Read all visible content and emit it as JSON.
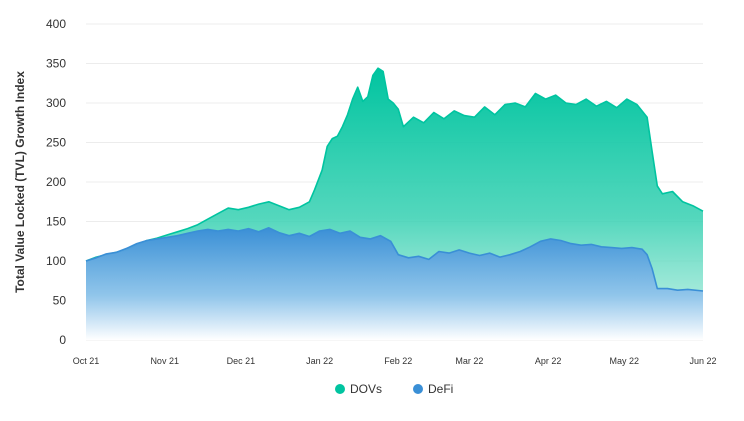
{
  "chart_data": {
    "type": "area",
    "title": "",
    "xlabel": "",
    "ylabel": "Total Value Locked (TVL) Growth Index",
    "ylim": [
      0,
      400
    ],
    "yticks": [
      0,
      50,
      100,
      150,
      200,
      250,
      300,
      350,
      400
    ],
    "xticks": [
      {
        "label": "Oct 21",
        "date": "2021-10-01"
      },
      {
        "label": "Nov 21",
        "date": "2021-11-01"
      },
      {
        "label": "Dec 21",
        "date": "2021-12-01"
      },
      {
        "label": "Jan 22",
        "date": "2022-01-01"
      },
      {
        "label": "Feb 22",
        "date": "2022-02-01"
      },
      {
        "label": "Mar 22",
        "date": "2022-03-01"
      },
      {
        "label": "Apr 22",
        "date": "2022-04-01"
      },
      {
        "label": "May 22",
        "date": "2022-05-01"
      },
      {
        "label": "Jun 22",
        "date": "2022-06-01"
      }
    ],
    "xlim": [
      "2021-10-01",
      "2022-06-01"
    ],
    "grid": "horizontal",
    "legend": "bottom",
    "series": [
      {
        "name": "DOVs",
        "color": "#00C4A0",
        "points": [
          [
            "2021-10-01",
            100
          ],
          [
            "2021-10-05",
            105
          ],
          [
            "2021-10-09",
            108
          ],
          [
            "2021-10-13",
            111
          ],
          [
            "2021-10-17",
            114
          ],
          [
            "2021-10-21",
            120
          ],
          [
            "2021-10-25",
            126
          ],
          [
            "2021-10-29",
            129
          ],
          [
            "2021-11-02",
            133
          ],
          [
            "2021-11-06",
            137
          ],
          [
            "2021-11-10",
            141
          ],
          [
            "2021-11-14",
            146
          ],
          [
            "2021-11-18",
            153
          ],
          [
            "2021-11-22",
            160
          ],
          [
            "2021-11-26",
            167
          ],
          [
            "2021-11-30",
            165
          ],
          [
            "2021-12-04",
            168
          ],
          [
            "2021-12-08",
            172
          ],
          [
            "2021-12-12",
            175
          ],
          [
            "2021-12-16",
            170
          ],
          [
            "2021-12-20",
            165
          ],
          [
            "2021-12-24",
            168
          ],
          [
            "2021-12-28",
            175
          ],
          [
            "2021-12-30",
            190
          ],
          [
            "2022-01-02",
            215
          ],
          [
            "2022-01-04",
            245
          ],
          [
            "2022-01-06",
            255
          ],
          [
            "2022-01-08",
            258
          ],
          [
            "2022-01-10",
            270
          ],
          [
            "2022-01-12",
            285
          ],
          [
            "2022-01-14",
            305
          ],
          [
            "2022-01-16",
            320
          ],
          [
            "2022-01-18",
            302
          ],
          [
            "2022-01-20",
            308
          ],
          [
            "2022-01-22",
            335
          ],
          [
            "2022-01-24",
            344
          ],
          [
            "2022-01-26",
            340
          ],
          [
            "2022-01-28",
            305
          ],
          [
            "2022-01-30",
            300
          ],
          [
            "2022-02-01",
            292
          ],
          [
            "2022-02-03",
            270
          ],
          [
            "2022-02-07",
            282
          ],
          [
            "2022-02-11",
            275
          ],
          [
            "2022-02-15",
            288
          ],
          [
            "2022-02-19",
            280
          ],
          [
            "2022-02-23",
            290
          ],
          [
            "2022-02-27",
            284
          ],
          [
            "2022-03-03",
            282
          ],
          [
            "2022-03-07",
            295
          ],
          [
            "2022-03-11",
            285
          ],
          [
            "2022-03-15",
            298
          ],
          [
            "2022-03-19",
            300
          ],
          [
            "2022-03-23",
            295
          ],
          [
            "2022-03-27",
            312
          ],
          [
            "2022-03-31",
            305
          ],
          [
            "2022-04-04",
            310
          ],
          [
            "2022-04-08",
            300
          ],
          [
            "2022-04-12",
            298
          ],
          [
            "2022-04-16",
            305
          ],
          [
            "2022-04-20",
            296
          ],
          [
            "2022-04-24",
            302
          ],
          [
            "2022-04-28",
            294
          ],
          [
            "2022-05-02",
            305
          ],
          [
            "2022-05-06",
            298
          ],
          [
            "2022-05-10",
            282
          ],
          [
            "2022-05-12",
            238
          ],
          [
            "2022-05-14",
            195
          ],
          [
            "2022-05-16",
            185
          ],
          [
            "2022-05-20",
            188
          ],
          [
            "2022-05-24",
            175
          ],
          [
            "2022-05-28",
            170
          ],
          [
            "2022-06-01",
            163
          ]
        ]
      },
      {
        "name": "DeFi",
        "color": "#3A8FD6",
        "points": [
          [
            "2021-10-01",
            100
          ],
          [
            "2021-10-05",
            104
          ],
          [
            "2021-10-09",
            109
          ],
          [
            "2021-10-13",
            111
          ],
          [
            "2021-10-17",
            116
          ],
          [
            "2021-10-21",
            122
          ],
          [
            "2021-10-25",
            126
          ],
          [
            "2021-10-29",
            128
          ],
          [
            "2021-11-02",
            130
          ],
          [
            "2021-11-06",
            132
          ],
          [
            "2021-11-10",
            135
          ],
          [
            "2021-11-14",
            138
          ],
          [
            "2021-11-18",
            140
          ],
          [
            "2021-11-22",
            138
          ],
          [
            "2021-11-26",
            140
          ],
          [
            "2021-11-30",
            138
          ],
          [
            "2021-12-04",
            141
          ],
          [
            "2021-12-08",
            137
          ],
          [
            "2021-12-12",
            142
          ],
          [
            "2021-12-16",
            136
          ],
          [
            "2021-12-20",
            132
          ],
          [
            "2021-12-24",
            135
          ],
          [
            "2021-12-28",
            131
          ],
          [
            "2022-01-01",
            138
          ],
          [
            "2022-01-05",
            140
          ],
          [
            "2022-01-09",
            135
          ],
          [
            "2022-01-13",
            138
          ],
          [
            "2022-01-17",
            130
          ],
          [
            "2022-01-21",
            128
          ],
          [
            "2022-01-25",
            132
          ],
          [
            "2022-01-29",
            125
          ],
          [
            "2022-02-01",
            108
          ],
          [
            "2022-02-05",
            104
          ],
          [
            "2022-02-09",
            106
          ],
          [
            "2022-02-13",
            102
          ],
          [
            "2022-02-17",
            112
          ],
          [
            "2022-02-21",
            110
          ],
          [
            "2022-02-25",
            114
          ],
          [
            "2022-03-01",
            110
          ],
          [
            "2022-03-05",
            107
          ],
          [
            "2022-03-09",
            110
          ],
          [
            "2022-03-13",
            105
          ],
          [
            "2022-03-17",
            108
          ],
          [
            "2022-03-21",
            112
          ],
          [
            "2022-03-25",
            118
          ],
          [
            "2022-03-29",
            125
          ],
          [
            "2022-04-02",
            128
          ],
          [
            "2022-04-06",
            126
          ],
          [
            "2022-04-10",
            122
          ],
          [
            "2022-04-14",
            120
          ],
          [
            "2022-04-18",
            121
          ],
          [
            "2022-04-22",
            118
          ],
          [
            "2022-04-26",
            117
          ],
          [
            "2022-04-30",
            116
          ],
          [
            "2022-05-04",
            117
          ],
          [
            "2022-05-08",
            115
          ],
          [
            "2022-05-10",
            108
          ],
          [
            "2022-05-12",
            90
          ],
          [
            "2022-05-14",
            65
          ],
          [
            "2022-05-18",
            65
          ],
          [
            "2022-05-22",
            63
          ],
          [
            "2022-05-26",
            64
          ],
          [
            "2022-06-01",
            62
          ]
        ]
      }
    ]
  }
}
